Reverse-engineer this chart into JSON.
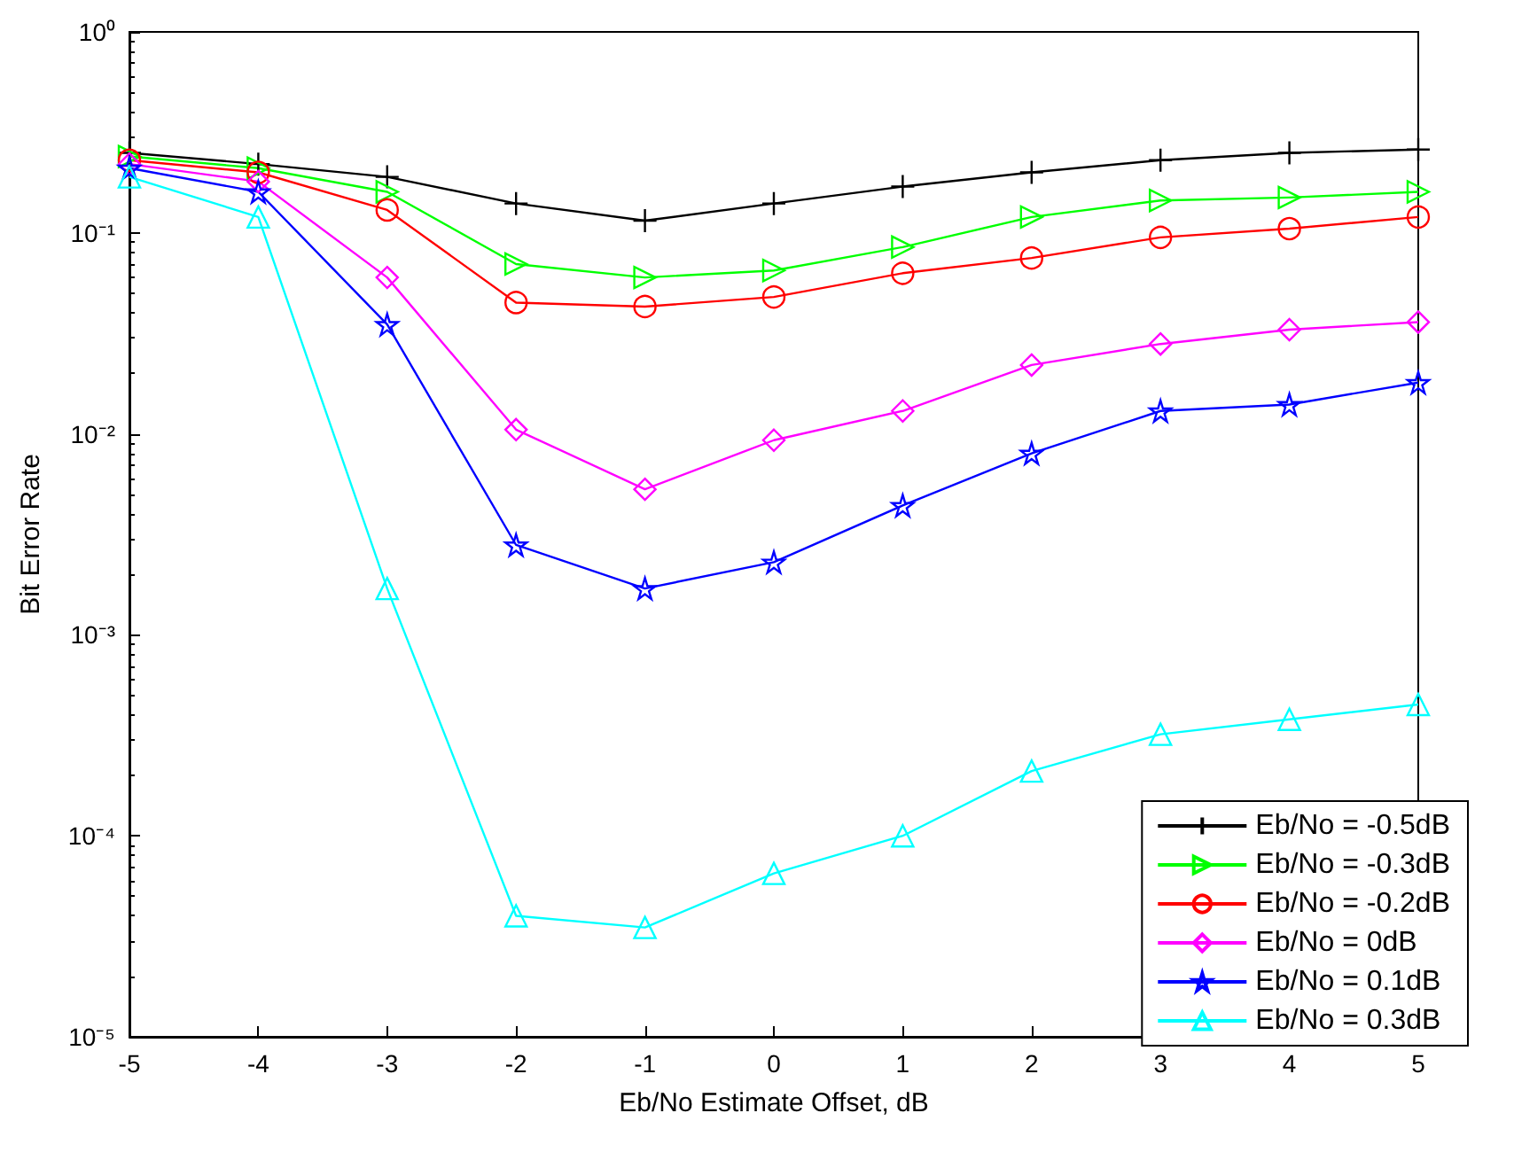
{
  "chart_data": {
    "type": "line",
    "xlabel": "Eb/No Estimate Offset, dB",
    "ylabel": "Bit Error Rate",
    "x": [
      -5,
      -4,
      -3,
      -2,
      -1,
      0,
      1,
      2,
      3,
      4,
      5
    ],
    "xlim": [
      -5,
      5
    ],
    "xticks": [
      -5,
      -4,
      -3,
      -2,
      -1,
      0,
      1,
      2,
      3,
      4,
      5
    ],
    "log": true,
    "ylim": [
      1e-05,
      1
    ],
    "yticks": [
      {
        "value": 1e-05,
        "label": "10⁻⁵"
      },
      {
        "value": 0.0001,
        "label": "10⁻⁴"
      },
      {
        "value": 0.001,
        "label": "10⁻³"
      },
      {
        "value": 0.01,
        "label": "10⁻²"
      },
      {
        "value": 0.1,
        "label": "10⁻¹"
      },
      {
        "value": 1,
        "label": "10⁰"
      }
    ],
    "grid": false,
    "legend": "bottom right",
    "line_style": "solid",
    "series": [
      {
        "name": "Eb/No = -0.5dB",
        "color": "#000000",
        "marker": "cross",
        "values": [
          0.25,
          0.22,
          0.19,
          0.14,
          0.115,
          0.14,
          0.17,
          0.2,
          0.23,
          0.25,
          0.26
        ]
      },
      {
        "name": "Eb/No = -0.3dB",
        "color": "#00ff00",
        "marker": "triangle",
        "values": [
          0.24,
          0.21,
          0.16,
          0.07,
          0.06,
          0.065,
          0.085,
          0.12,
          0.145,
          0.15,
          0.16
        ]
      },
      {
        "name": "Eb/No = -0.2dB",
        "color": "#ff0000",
        "marker": "circle",
        "values": [
          0.23,
          0.2,
          0.13,
          0.045,
          0.043,
          0.048,
          0.063,
          0.075,
          0.095,
          0.105,
          0.12
        ]
      },
      {
        "name": "Eb/No = 0dB",
        "color": "#ff00ff",
        "marker": "diamond",
        "values": [
          0.22,
          0.18,
          0.06,
          0.0105,
          0.0053,
          0.0093,
          0.013,
          0.022,
          0.028,
          0.033,
          0.036
        ]
      },
      {
        "name": "Eb/No = 0.1dB",
        "color": "#0000ff",
        "marker": "star",
        "values": [
          0.21,
          0.16,
          0.035,
          0.0028,
          0.0017,
          0.0023,
          0.0044,
          0.008,
          0.013,
          0.014,
          0.018
        ]
      },
      {
        "name": "Eb/No = 0.3dB",
        "color": "#00ffff",
        "marker": "triangle",
        "values": [
          0.19,
          0.12,
          0.0017,
          4e-05,
          3.5e-05,
          6.5e-05,
          0.0001,
          0.00021,
          0.00032,
          0.00038,
          0.00045
        ]
      }
    ]
  }
}
